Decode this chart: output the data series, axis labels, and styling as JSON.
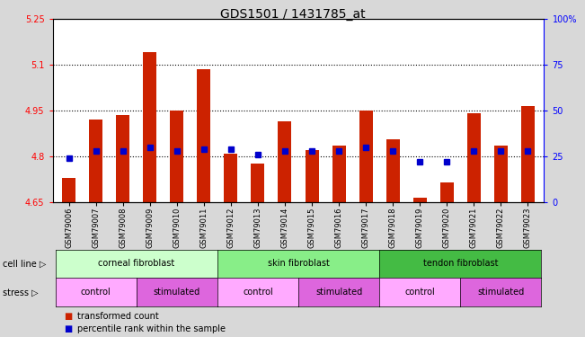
{
  "title": "GDS1501 / 1431785_at",
  "samples": [
    "GSM79006",
    "GSM79007",
    "GSM79008",
    "GSM79009",
    "GSM79010",
    "GSM79011",
    "GSM79012",
    "GSM79013",
    "GSM79014",
    "GSM79015",
    "GSM79016",
    "GSM79017",
    "GSM79018",
    "GSM79019",
    "GSM79020",
    "GSM79021",
    "GSM79022",
    "GSM79023"
  ],
  "bar_values": [
    4.73,
    4.92,
    4.935,
    5.14,
    4.95,
    5.085,
    4.81,
    4.775,
    4.915,
    4.82,
    4.835,
    4.95,
    4.855,
    4.665,
    4.715,
    4.94,
    4.835,
    4.965
  ],
  "percentile_values": [
    24,
    28,
    28,
    30,
    28,
    29,
    29,
    26,
    28,
    28,
    28,
    30,
    28,
    22,
    22,
    28,
    28,
    28
  ],
  "ylim_left": [
    4.65,
    5.25
  ],
  "ylim_right": [
    0,
    100
  ],
  "yticks_left": [
    4.65,
    4.8,
    4.95,
    5.1,
    5.25
  ],
  "ytick_labels_left": [
    "4.65",
    "4.8",
    "4.95",
    "5.1",
    "5.25"
  ],
  "yticks_right": [
    0,
    25,
    50,
    75,
    100
  ],
  "ytick_labels_right": [
    "0",
    "25",
    "50",
    "75",
    "100%"
  ],
  "grid_lines": [
    4.8,
    4.95,
    5.1
  ],
  "bar_color": "#cc2200",
  "dot_color": "#0000cc",
  "cell_lines": [
    {
      "label": "corneal fibroblast",
      "start": 0,
      "end": 6,
      "color": "#ccffcc"
    },
    {
      "label": "skin fibroblast",
      "start": 6,
      "end": 12,
      "color": "#88ee88"
    },
    {
      "label": "tendon fibroblast",
      "start": 12,
      "end": 18,
      "color": "#44bb44"
    }
  ],
  "stress_groups": [
    {
      "label": "control",
      "start": 0,
      "end": 3,
      "color": "#ffaaff"
    },
    {
      "label": "stimulated",
      "start": 3,
      "end": 6,
      "color": "#dd66dd"
    },
    {
      "label": "control",
      "start": 6,
      "end": 9,
      "color": "#ffaaff"
    },
    {
      "label": "stimulated",
      "start": 9,
      "end": 12,
      "color": "#dd66dd"
    },
    {
      "label": "control",
      "start": 12,
      "end": 15,
      "color": "#ffaaff"
    },
    {
      "label": "stimulated",
      "start": 15,
      "end": 18,
      "color": "#dd66dd"
    }
  ],
  "legend_items": [
    {
      "label": "transformed count",
      "color": "#cc2200"
    },
    {
      "label": "percentile rank within the sample",
      "color": "#0000cc"
    }
  ],
  "cell_line_label": "cell line",
  "stress_label": "stress",
  "fig_bg": "#d8d8d8",
  "plot_bg": "#ffffff"
}
